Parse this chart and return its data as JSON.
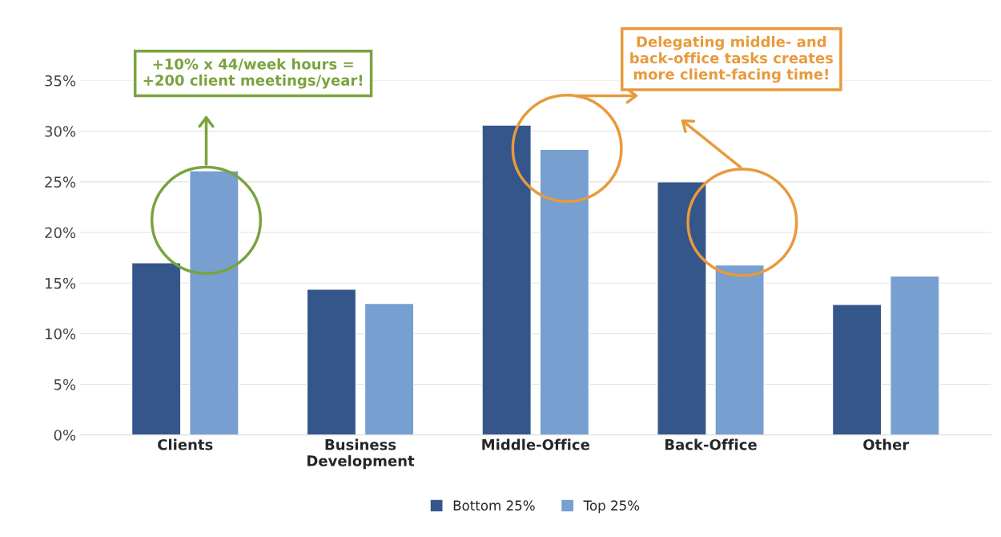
{
  "chart_data": {
    "type": "bar",
    "categories": [
      "Clients",
      "Business\nDevelopment",
      "Middle-Office",
      "Back-Office",
      "Other"
    ],
    "series": [
      {
        "name": "Bottom 25%",
        "color": "#34568b",
        "values": [
          17.0,
          14.4,
          30.6,
          25.0,
          12.9
        ]
      },
      {
        "name": "Top 25%",
        "color": "#779fd0",
        "values": [
          26.1,
          13.0,
          28.2,
          16.8,
          15.7
        ]
      }
    ],
    "ylim": [
      0,
      35
    ],
    "yticks": [
      {
        "value": 0,
        "label": "0%"
      },
      {
        "value": 5,
        "label": "5%"
      },
      {
        "value": 10,
        "label": "10%"
      },
      {
        "value": 15,
        "label": "15%"
      },
      {
        "value": 20,
        "label": "20%"
      },
      {
        "value": 25,
        "label": "25%"
      },
      {
        "value": 30,
        "label": "30%"
      },
      {
        "value": 35,
        "label": "35%"
      }
    ],
    "grid": "y",
    "legend": "bottom",
    "annotations": [
      "+10% x 44/week hours =\n+200 client meetings/year!",
      "Delegating middle- and\nback-office tasks creates\nmore client-facing time!"
    ]
  }
}
